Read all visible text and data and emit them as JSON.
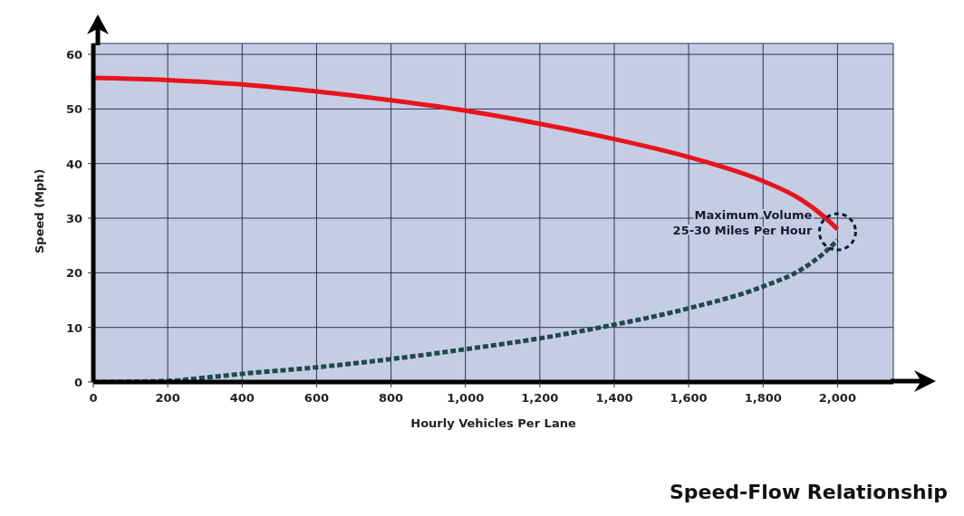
{
  "chart_data": {
    "type": "line",
    "title": "Speed-Flow Relationship",
    "xlabel": "Hourly Vehicles Per Lane",
    "ylabel": "Speed (Mph)",
    "xlim": [
      0,
      2150
    ],
    "ylim": [
      0,
      62
    ],
    "xticks": [
      0,
      200,
      400,
      600,
      800,
      {
        "value": 1000,
        "label": "1,000"
      },
      {
        "value": 1200,
        "label": "1,200"
      },
      {
        "value": 1400,
        "label": "1,400"
      },
      {
        "value": 1600,
        "label": "1,600"
      },
      {
        "value": 1800,
        "label": "1,800"
      },
      {
        "value": 2000,
        "label": "2,000"
      }
    ],
    "yticks": [
      0,
      10,
      20,
      30,
      40,
      50,
      60
    ],
    "grid": true,
    "marker": "none",
    "series": [
      {
        "color": "#e8141c",
        "line_style": "solid",
        "x": [
          0,
          200,
          400,
          600,
          800,
          1000,
          1200,
          1400,
          1600,
          1800,
          1900,
          1960,
          2000
        ],
        "values": [
          55.7,
          55.3,
          54.5,
          53.2,
          51.6,
          49.7,
          47.3,
          44.5,
          41.2,
          36.8,
          33.5,
          30.5,
          28
        ]
      },
      {
        "color": "#1f4a4a",
        "line_style": "dashed",
        "x": [
          0,
          200,
          300,
          400,
          600,
          800,
          1000,
          1200,
          1400,
          1600,
          1800,
          1900,
          1970,
          2000
        ],
        "values": [
          0,
          0.2,
          0.8,
          1.5,
          2.7,
          4.2,
          6,
          8,
          10.5,
          13.5,
          17.5,
          20.5,
          24,
          26
        ]
      }
    ],
    "annotations": [
      {
        "text": "Maximum Volume\n25-30 Miles Per Hour",
        "x": 2000,
        "y": 27.5
      }
    ]
  }
}
